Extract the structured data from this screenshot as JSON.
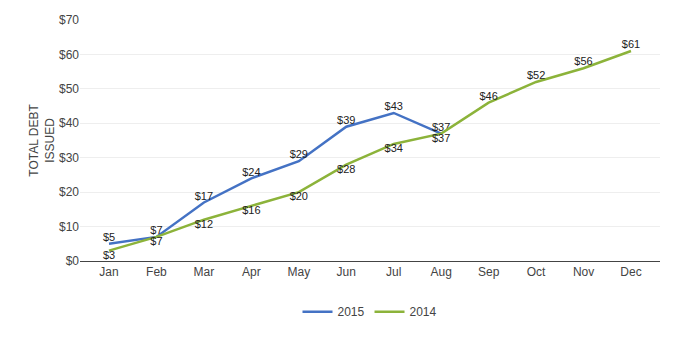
{
  "chart_data": {
    "type": "line",
    "ylabel": "TOTAL DEBT\nISSUED",
    "categories": [
      "Jan",
      "Feb",
      "Mar",
      "Apr",
      "May",
      "Jun",
      "Jul",
      "Aug",
      "Sep",
      "Oct",
      "Nov",
      "Dec"
    ],
    "series": [
      {
        "name": "2015",
        "color": "#4472C4",
        "values": [
          5,
          7,
          17,
          24,
          29,
          39,
          43,
          37,
          null,
          null,
          null,
          null
        ],
        "value_labels": [
          "$5",
          "$7",
          "$17",
          "$24",
          "$29",
          "$39",
          "$43",
          "$37",
          null,
          null,
          null,
          null
        ]
      },
      {
        "name": "2014",
        "color": "#8CB33A",
        "values": [
          3,
          7,
          12,
          16,
          20,
          28,
          34,
          37,
          46,
          52,
          56,
          61
        ],
        "value_labels": [
          "$3",
          "$7",
          "$12",
          "$16",
          "$20",
          "$28",
          "$34",
          "$37",
          "$46",
          "$52",
          "$56",
          "$61"
        ]
      }
    ],
    "ylim": [
      0,
      70
    ],
    "yticks": [
      {
        "value": 0,
        "label": "$0"
      },
      {
        "value": 10,
        "label": "$10"
      },
      {
        "value": 20,
        "label": "$20"
      },
      {
        "value": 30,
        "label": "$30"
      },
      {
        "value": 40,
        "label": "$40"
      },
      {
        "value": 50,
        "label": "$50"
      },
      {
        "value": 60,
        "label": "$60"
      },
      {
        "value": 70,
        "label": "$70"
      }
    ],
    "grid": true,
    "legend": "bottom",
    "data_labels": true
  }
}
